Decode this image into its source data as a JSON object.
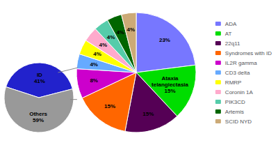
{
  "chart_data": [
    {
      "type": "pie",
      "categories": [
        "ADA",
        "AT",
        "22q11",
        "Syndromes with ID",
        "IL2R gamma",
        "CD3 delta",
        "RMRP",
        "Coronin 1A",
        "PIK3CD",
        "Artemis",
        "SCID NYD"
      ],
      "values": [
        23,
        15,
        15,
        15,
        8,
        4,
        4,
        4,
        4,
        4,
        4
      ],
      "value_labels": [
        "23%",
        "Ataxia\ntelangiectasia\n15%",
        "15%",
        "15%",
        "8%",
        "4%",
        "4%",
        "4%",
        "4%",
        "4%",
        "4%"
      ],
      "colors": [
        "#7777ff",
        "#00dd00",
        "#550055",
        "#ff6600",
        "#cc00cc",
        "#66aaff",
        "#ffff00",
        "#ffaacc",
        "#55ccaa",
        "#006600",
        "#ccaa77"
      ],
      "data_labels": true,
      "legend": "right"
    },
    {
      "type": "pie",
      "categories": [
        "ID",
        "Others"
      ],
      "values": [
        41,
        59
      ],
      "value_labels": [
        "ID\n41%",
        "Others\n59%"
      ],
      "colors": [
        "#2222cc",
        "#999999"
      ],
      "data_labels": true
    }
  ]
}
